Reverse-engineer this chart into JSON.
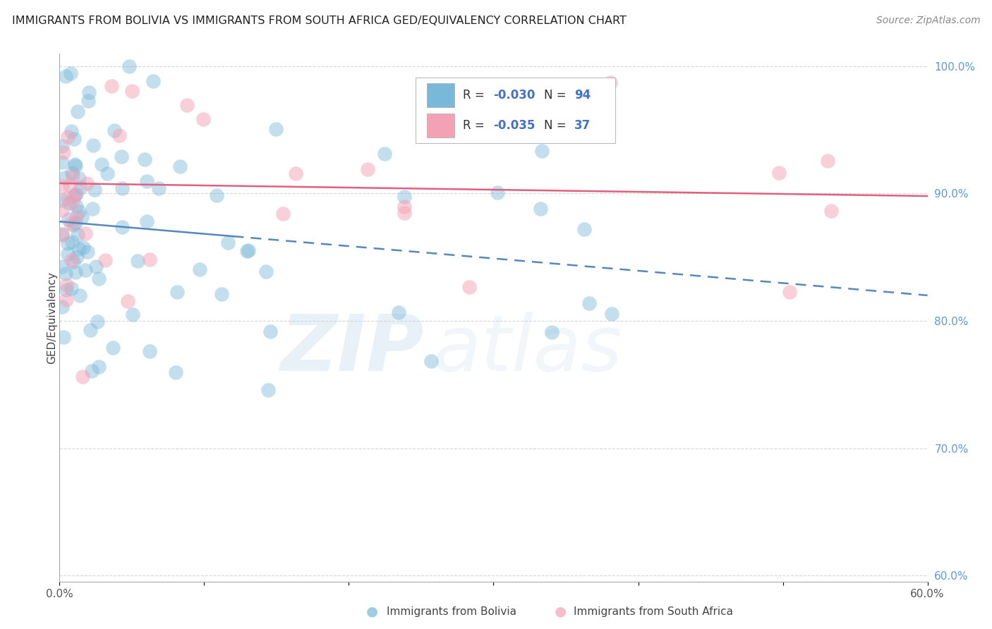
{
  "title": "IMMIGRANTS FROM BOLIVIA VS IMMIGRANTS FROM SOUTH AFRICA GED/EQUIVALENCY CORRELATION CHART",
  "source": "Source: ZipAtlas.com",
  "ylabel": "GED/Equivalency",
  "xlabel_bolivia": "Immigrants from Bolivia",
  "xlabel_southafrica": "Immigrants from South Africa",
  "xlim": [
    0.0,
    0.6
  ],
  "ylim": [
    0.595,
    1.01
  ],
  "xtick_positions": [
    0.0,
    0.1,
    0.2,
    0.3,
    0.4,
    0.5,
    0.6
  ],
  "xtick_labels": [
    "0.0%",
    "",
    "",
    "",
    "",
    "",
    "60.0%"
  ],
  "ytick_positions": [
    0.6,
    0.7,
    0.8,
    0.9,
    1.0
  ],
  "ytick_labels": [
    "60.0%",
    "70.0%",
    "80.0%",
    "90.0%",
    "100.0%"
  ],
  "bolivia_color": "#7ab8d9",
  "southafrica_color": "#f4a0b5",
  "bolivia_line_color": "#5588bb",
  "southafrica_line_color": "#e06080",
  "R_bolivia": -0.03,
  "N_bolivia": 94,
  "R_southafrica": -0.035,
  "N_southafrica": 37,
  "bolivia_trend_x": [
    0.0,
    0.08,
    0.6
  ],
  "bolivia_trend_y": [
    0.878,
    0.858,
    0.82
  ],
  "southafrica_trend_x": [
    0.0,
    0.6
  ],
  "southafrica_trend_y": [
    0.908,
    0.898
  ],
  "watermark_zip": "ZIP",
  "watermark_atlas": "atlas"
}
